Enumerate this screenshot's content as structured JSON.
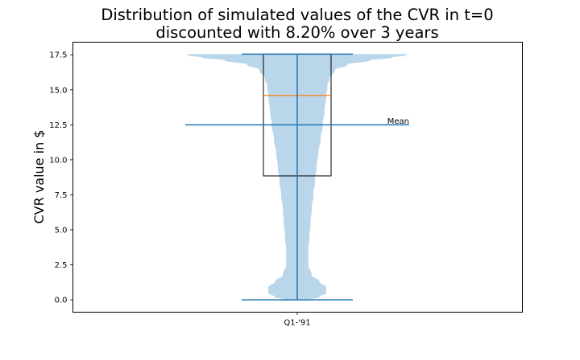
{
  "chart_data": {
    "type": "violin",
    "title_line1": "Distribution of simulated values of the CVR in t=0",
    "title_line2": "discounted with 8.20% over 3 years",
    "xlabel": "",
    "ylabel": "CVR value in $",
    "categories": [
      "Q1-'91"
    ],
    "yticks": [
      "0.0",
      "2.5",
      "5.0",
      "7.5",
      "10.0",
      "12.5",
      "15.0",
      "17.5"
    ],
    "ytick_values": [
      0,
      2.5,
      5,
      7.5,
      10,
      12.5,
      15,
      17.5
    ],
    "ylim": [
      -0.88,
      18.4
    ],
    "grid": false,
    "violin": {
      "min": 0,
      "max": 17.55,
      "mean": 12.5,
      "median": 14.6,
      "density_profile": [
        [
          0.0,
          0.1
        ],
        [
          0.2,
          0.2
        ],
        [
          0.5,
          0.26
        ],
        [
          0.9,
          0.26
        ],
        [
          1.3,
          0.2
        ],
        [
          1.8,
          0.13
        ],
        [
          2.5,
          0.1
        ],
        [
          3.5,
          0.1
        ],
        [
          4.5,
          0.11
        ],
        [
          5.5,
          0.12
        ],
        [
          6.5,
          0.13
        ],
        [
          7.5,
          0.145
        ],
        [
          8.5,
          0.16
        ],
        [
          9.5,
          0.175
        ],
        [
          10.5,
          0.19
        ],
        [
          11.5,
          0.21
        ],
        [
          12.5,
          0.23
        ],
        [
          13.5,
          0.245
        ],
        [
          14.5,
          0.26
        ],
        [
          15.2,
          0.27
        ],
        [
          15.8,
          0.29
        ],
        [
          16.4,
          0.34
        ],
        [
          16.8,
          0.45
        ],
        [
          17.1,
          0.65
        ],
        [
          17.3,
          0.85
        ],
        [
          17.45,
          0.97
        ],
        [
          17.55,
          1.0
        ]
      ]
    },
    "box": {
      "q1": 8.85,
      "median": 14.6,
      "q3": 17.55,
      "whisker_low": 0,
      "whisker_high": 17.55
    },
    "annotations": [
      {
        "text": "Mean",
        "y": 12.8
      }
    ],
    "colors": {
      "violin_fill": "#bad6ea",
      "line": "#1f77b4",
      "median_line": "#ff7f0e",
      "box": "#000000"
    }
  }
}
